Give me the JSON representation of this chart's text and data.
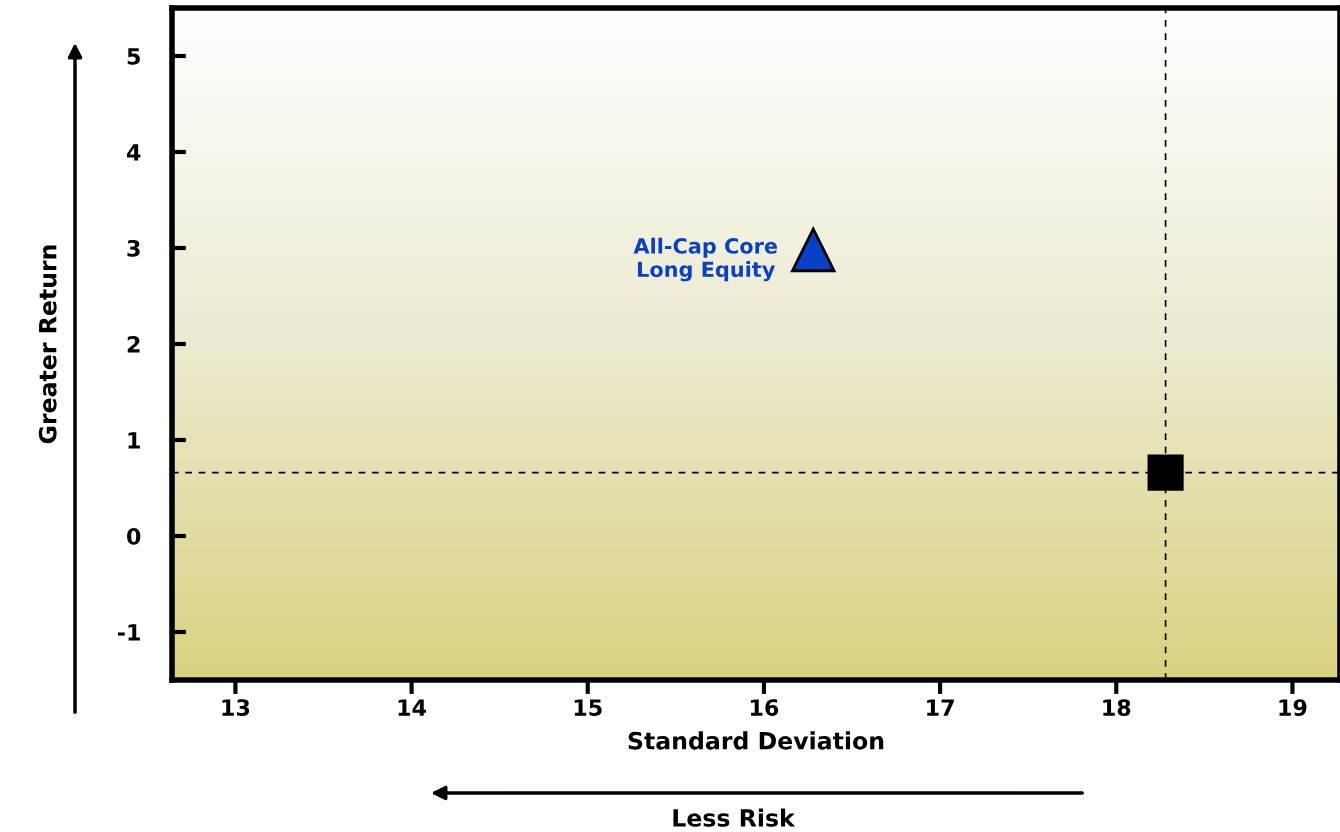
{
  "chart_data": {
    "type": "scatter",
    "xlabel": "Standard Deviation",
    "ylabel": "Greater Return",
    "annotations": [
      "Less Risk"
    ],
    "xlim": [
      12.64,
      19.27
    ],
    "xticks": [
      13,
      14,
      15,
      16,
      17,
      18,
      19
    ],
    "ylim": [
      -1.5,
      5.5
    ],
    "yticks": [
      -1,
      0,
      1,
      2,
      3,
      4,
      5
    ],
    "grid": false,
    "series": [
      {
        "name": "All-Cap Core\nLong Equity",
        "color": "#0a3fc8",
        "marker": "triangle",
        "x": [
          16.28
        ],
        "values": [
          2.98
        ]
      },
      {
        "color": "#000000",
        "marker": "square",
        "x": [
          18.28
        ],
        "values": [
          0.66
        ]
      }
    ],
    "ref_lines": [
      {
        "axis": "x",
        "value": 18.28,
        "color": "#000000",
        "line_style": "dashed"
      },
      {
        "axis": "y",
        "value": 0.66,
        "color": "#000000",
        "line_style": "dashed"
      }
    ]
  }
}
